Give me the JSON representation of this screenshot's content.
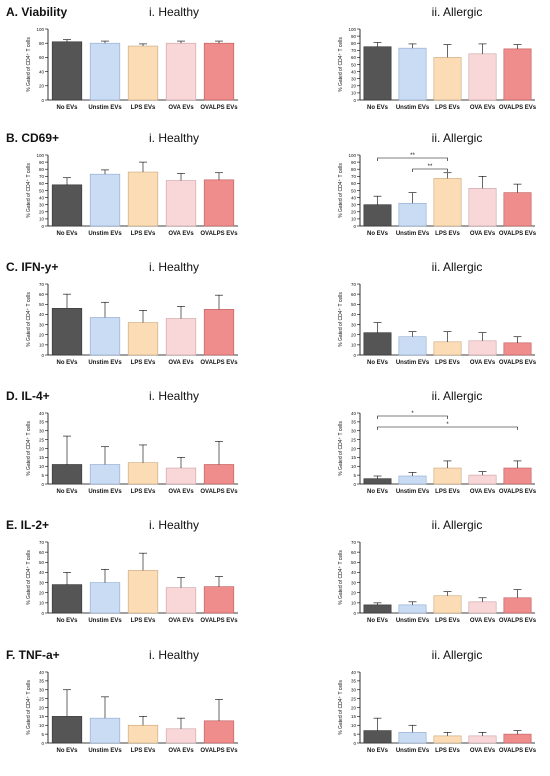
{
  "colors": {
    "no_evs": "#555555",
    "unstim_evs": "#c9dcf4",
    "lps_evs": "#fbdcb4",
    "ova_evs": "#f9d7d9",
    "ovalps_evs": "#ef8c8c"
  },
  "categories": [
    "No EVs",
    "Unstim EVs",
    "LPS EVs",
    "OVA EVs",
    "OVALPS EVs"
  ],
  "ylabel": "% Gated of CD4⁺ T cells",
  "panel_titles": {
    "healthy": "i. Healthy",
    "allergic": "ii. Allergic"
  },
  "sections": [
    {
      "label": "A. Viability",
      "healthy": {
        "ylim": [
          0,
          100
        ],
        "ticks": [
          0,
          20,
          40,
          60,
          80,
          100
        ],
        "values": [
          82,
          80,
          76,
          80,
          80
        ],
        "errors": [
          3,
          3,
          3,
          3,
          3
        ]
      },
      "allergic": {
        "ylim": [
          0,
          100
        ],
        "ticks": [
          0,
          10,
          20,
          30,
          40,
          50,
          60,
          70,
          80,
          90,
          100
        ],
        "values": [
          75,
          73,
          60,
          65,
          72
        ],
        "errors": [
          6,
          6,
          18,
          14,
          6
        ]
      }
    },
    {
      "label": "B. CD69+",
      "healthy": {
        "ylim": [
          0,
          100
        ],
        "ticks": [
          0,
          10,
          20,
          30,
          40,
          50,
          60,
          70,
          80,
          90,
          100
        ],
        "values": [
          58,
          73,
          76,
          64,
          65
        ],
        "errors": [
          10,
          6,
          14,
          10,
          10
        ]
      },
      "allergic": {
        "ylim": [
          0,
          100
        ],
        "ticks": [
          0,
          10,
          20,
          30,
          40,
          50,
          60,
          70,
          80,
          90,
          100
        ],
        "values": [
          30,
          32,
          67,
          53,
          47
        ],
        "errors": [
          12,
          15,
          8,
          17,
          12
        ],
        "significance": [
          {
            "from": 0,
            "to": 2,
            "text": "**"
          },
          {
            "from": 1,
            "to": 2,
            "text": "**"
          }
        ]
      }
    },
    {
      "label": "C. IFN-y+",
      "healthy": {
        "ylim": [
          0,
          70
        ],
        "ticks": [
          0,
          10,
          20,
          30,
          40,
          50,
          60,
          70
        ],
        "values": [
          46,
          37,
          32,
          36,
          45
        ],
        "errors": [
          14,
          15,
          12,
          12,
          14
        ]
      },
      "allergic": {
        "ylim": [
          0,
          70
        ],
        "ticks": [
          0,
          10,
          20,
          30,
          40,
          50,
          60,
          70
        ],
        "values": [
          22,
          18,
          13,
          14,
          12
        ],
        "errors": [
          10,
          5,
          10,
          8,
          6
        ]
      }
    },
    {
      "label": "D. IL-4+",
      "healthy": {
        "ylim": [
          0,
          40
        ],
        "ticks": [
          0,
          5,
          10,
          15,
          20,
          25,
          30,
          35,
          40
        ],
        "values": [
          11,
          11,
          12,
          9,
          11
        ],
        "errors": [
          16,
          10,
          10,
          6,
          13
        ]
      },
      "allergic": {
        "ylim": [
          0,
          40
        ],
        "ticks": [
          0,
          5,
          10,
          15,
          20,
          25,
          30,
          35,
          40
        ],
        "values": [
          3,
          4.5,
          9,
          5,
          9
        ],
        "errors": [
          1.5,
          2,
          4,
          2,
          4
        ],
        "significance": [
          {
            "from": 0,
            "to": 2,
            "text": "*"
          },
          {
            "from": 0,
            "to": 4,
            "text": "*"
          }
        ]
      }
    },
    {
      "label": "E. IL-2+",
      "healthy": {
        "ylim": [
          0,
          70
        ],
        "ticks": [
          0,
          10,
          20,
          30,
          40,
          50,
          60,
          70
        ],
        "values": [
          28,
          30,
          42,
          25,
          26
        ],
        "errors": [
          12,
          13,
          17,
          10,
          10
        ]
      },
      "allergic": {
        "ylim": [
          0,
          70
        ],
        "ticks": [
          0,
          10,
          20,
          30,
          40,
          50,
          60,
          70
        ],
        "values": [
          8,
          8,
          17,
          11,
          15
        ],
        "errors": [
          2,
          3,
          4,
          4,
          8
        ]
      }
    },
    {
      "label": "F. TNF-a+",
      "healthy": {
        "ylim": [
          0,
          40
        ],
        "ticks": [
          0,
          5,
          10,
          15,
          20,
          25,
          30,
          35,
          40
        ],
        "values": [
          15,
          14,
          10,
          8,
          12.5
        ],
        "errors": [
          15,
          12,
          5,
          6,
          12
        ]
      },
      "allergic": {
        "ylim": [
          0,
          40
        ],
        "ticks": [
          0,
          5,
          10,
          15,
          20,
          25,
          30,
          35,
          40
        ],
        "values": [
          7,
          6,
          4,
          4,
          5
        ],
        "errors": [
          7,
          4,
          2,
          2,
          2
        ]
      }
    }
  ],
  "chart_data": [
    {
      "type": "bar",
      "title": "i. Healthy",
      "ylabel": "% Gated of CD4⁺ T cells",
      "categories": [
        "No EVs",
        "Unstim EVs",
        "LPS EVs",
        "OVA EVs",
        "OVALPS EVs"
      ],
      "values": [
        82,
        80,
        76,
        80,
        80
      ],
      "ylim": [
        0,
        100
      ]
    },
    {
      "type": "bar",
      "title": "ii. Allergic",
      "ylabel": "% Gated of CD4⁺ T cells",
      "categories": [
        "No EVs",
        "Unstim EVs",
        "LPS EVs",
        "OVA EVs",
        "OVALPS EVs"
      ],
      "values": [
        75,
        73,
        60,
        65,
        72
      ],
      "ylim": [
        0,
        100
      ]
    },
    {
      "type": "bar",
      "title": "i. Healthy",
      "ylabel": "% Gated of CD4⁺ T cells",
      "categories": [
        "No EVs",
        "Unstim EVs",
        "LPS EVs",
        "OVA EVs",
        "OVALPS EVs"
      ],
      "values": [
        58,
        73,
        76,
        64,
        65
      ],
      "ylim": [
        0,
        100
      ]
    },
    {
      "type": "bar",
      "title": "ii. Allergic",
      "ylabel": "% Gated of CD4⁺ T cells",
      "categories": [
        "No EVs",
        "Unstim EVs",
        "LPS EVs",
        "OVA EVs",
        "OVALPS EVs"
      ],
      "values": [
        30,
        32,
        67,
        53,
        47
      ],
      "ylim": [
        0,
        100
      ]
    },
    {
      "type": "bar",
      "title": "i. Healthy",
      "ylabel": "% Gated of CD4⁺ T cells",
      "categories": [
        "No EVs",
        "Unstim EVs",
        "LPS EVs",
        "OVA EVs",
        "OVALPS EVs"
      ],
      "values": [
        46,
        37,
        32,
        36,
        45
      ],
      "ylim": [
        0,
        70
      ]
    },
    {
      "type": "bar",
      "title": "ii. Allergic",
      "ylabel": "% Gated of CD4⁺ T cells",
      "categories": [
        "No EVs",
        "Unstim EVs",
        "LPS EVs",
        "OVA EVs",
        "OVALPS EVs"
      ],
      "values": [
        22,
        18,
        13,
        14,
        12
      ],
      "ylim": [
        0,
        70
      ]
    },
    {
      "type": "bar",
      "title": "i. Healthy",
      "ylabel": "% Gated of CD4⁺ T cells",
      "categories": [
        "No EVs",
        "Unstim EVs",
        "LPS EVs",
        "OVA EVs",
        "OVALPS EVs"
      ],
      "values": [
        11,
        11,
        12,
        9,
        11
      ],
      "ylim": [
        0,
        40
      ]
    },
    {
      "type": "bar",
      "title": "ii. Allergic",
      "ylabel": "% Gated of CD4⁺ T cells",
      "categories": [
        "No EVs",
        "Unstim EVs",
        "LPS EVs",
        "OVA EVs",
        "OVALPS EVs"
      ],
      "values": [
        3,
        4.5,
        9,
        5,
        9
      ],
      "ylim": [
        0,
        40
      ]
    },
    {
      "type": "bar",
      "title": "i. Healthy",
      "ylabel": "% Gated of CD4⁺ T cells",
      "categories": [
        "No EVs",
        "Unstim EVs",
        "LPS EVs",
        "OVA EVs",
        "OVALPS EVs"
      ],
      "values": [
        28,
        30,
        42,
        25,
        26
      ],
      "ylim": [
        0,
        70
      ]
    },
    {
      "type": "bar",
      "title": "ii. Allergic",
      "ylabel": "% Gated of CD4⁺ T cells",
      "categories": [
        "No EVs",
        "Unstim EVs",
        "LPS EVs",
        "OVA EVs",
        "OVALPS EVs"
      ],
      "values": [
        8,
        8,
        17,
        11,
        15
      ],
      "ylim": [
        0,
        70
      ]
    },
    {
      "type": "bar",
      "title": "i. Healthy",
      "ylabel": "% Gated of CD4⁺ T cells",
      "categories": [
        "No EVs",
        "Unstim EVs",
        "LPS EVs",
        "OVA EVs",
        "OVALPS EVs"
      ],
      "values": [
        15,
        14,
        10,
        8,
        12.5
      ],
      "ylim": [
        0,
        40
      ]
    },
    {
      "type": "bar",
      "title": "ii. Allergic",
      "ylabel": "% Gated of CD4⁺ T cells",
      "categories": [
        "No EVs",
        "Unstim EVs",
        "LPS EVs",
        "OVA EVs",
        "OVALPS EVs"
      ],
      "values": [
        7,
        6,
        4,
        4,
        5
      ],
      "ylim": [
        0,
        40
      ]
    }
  ]
}
